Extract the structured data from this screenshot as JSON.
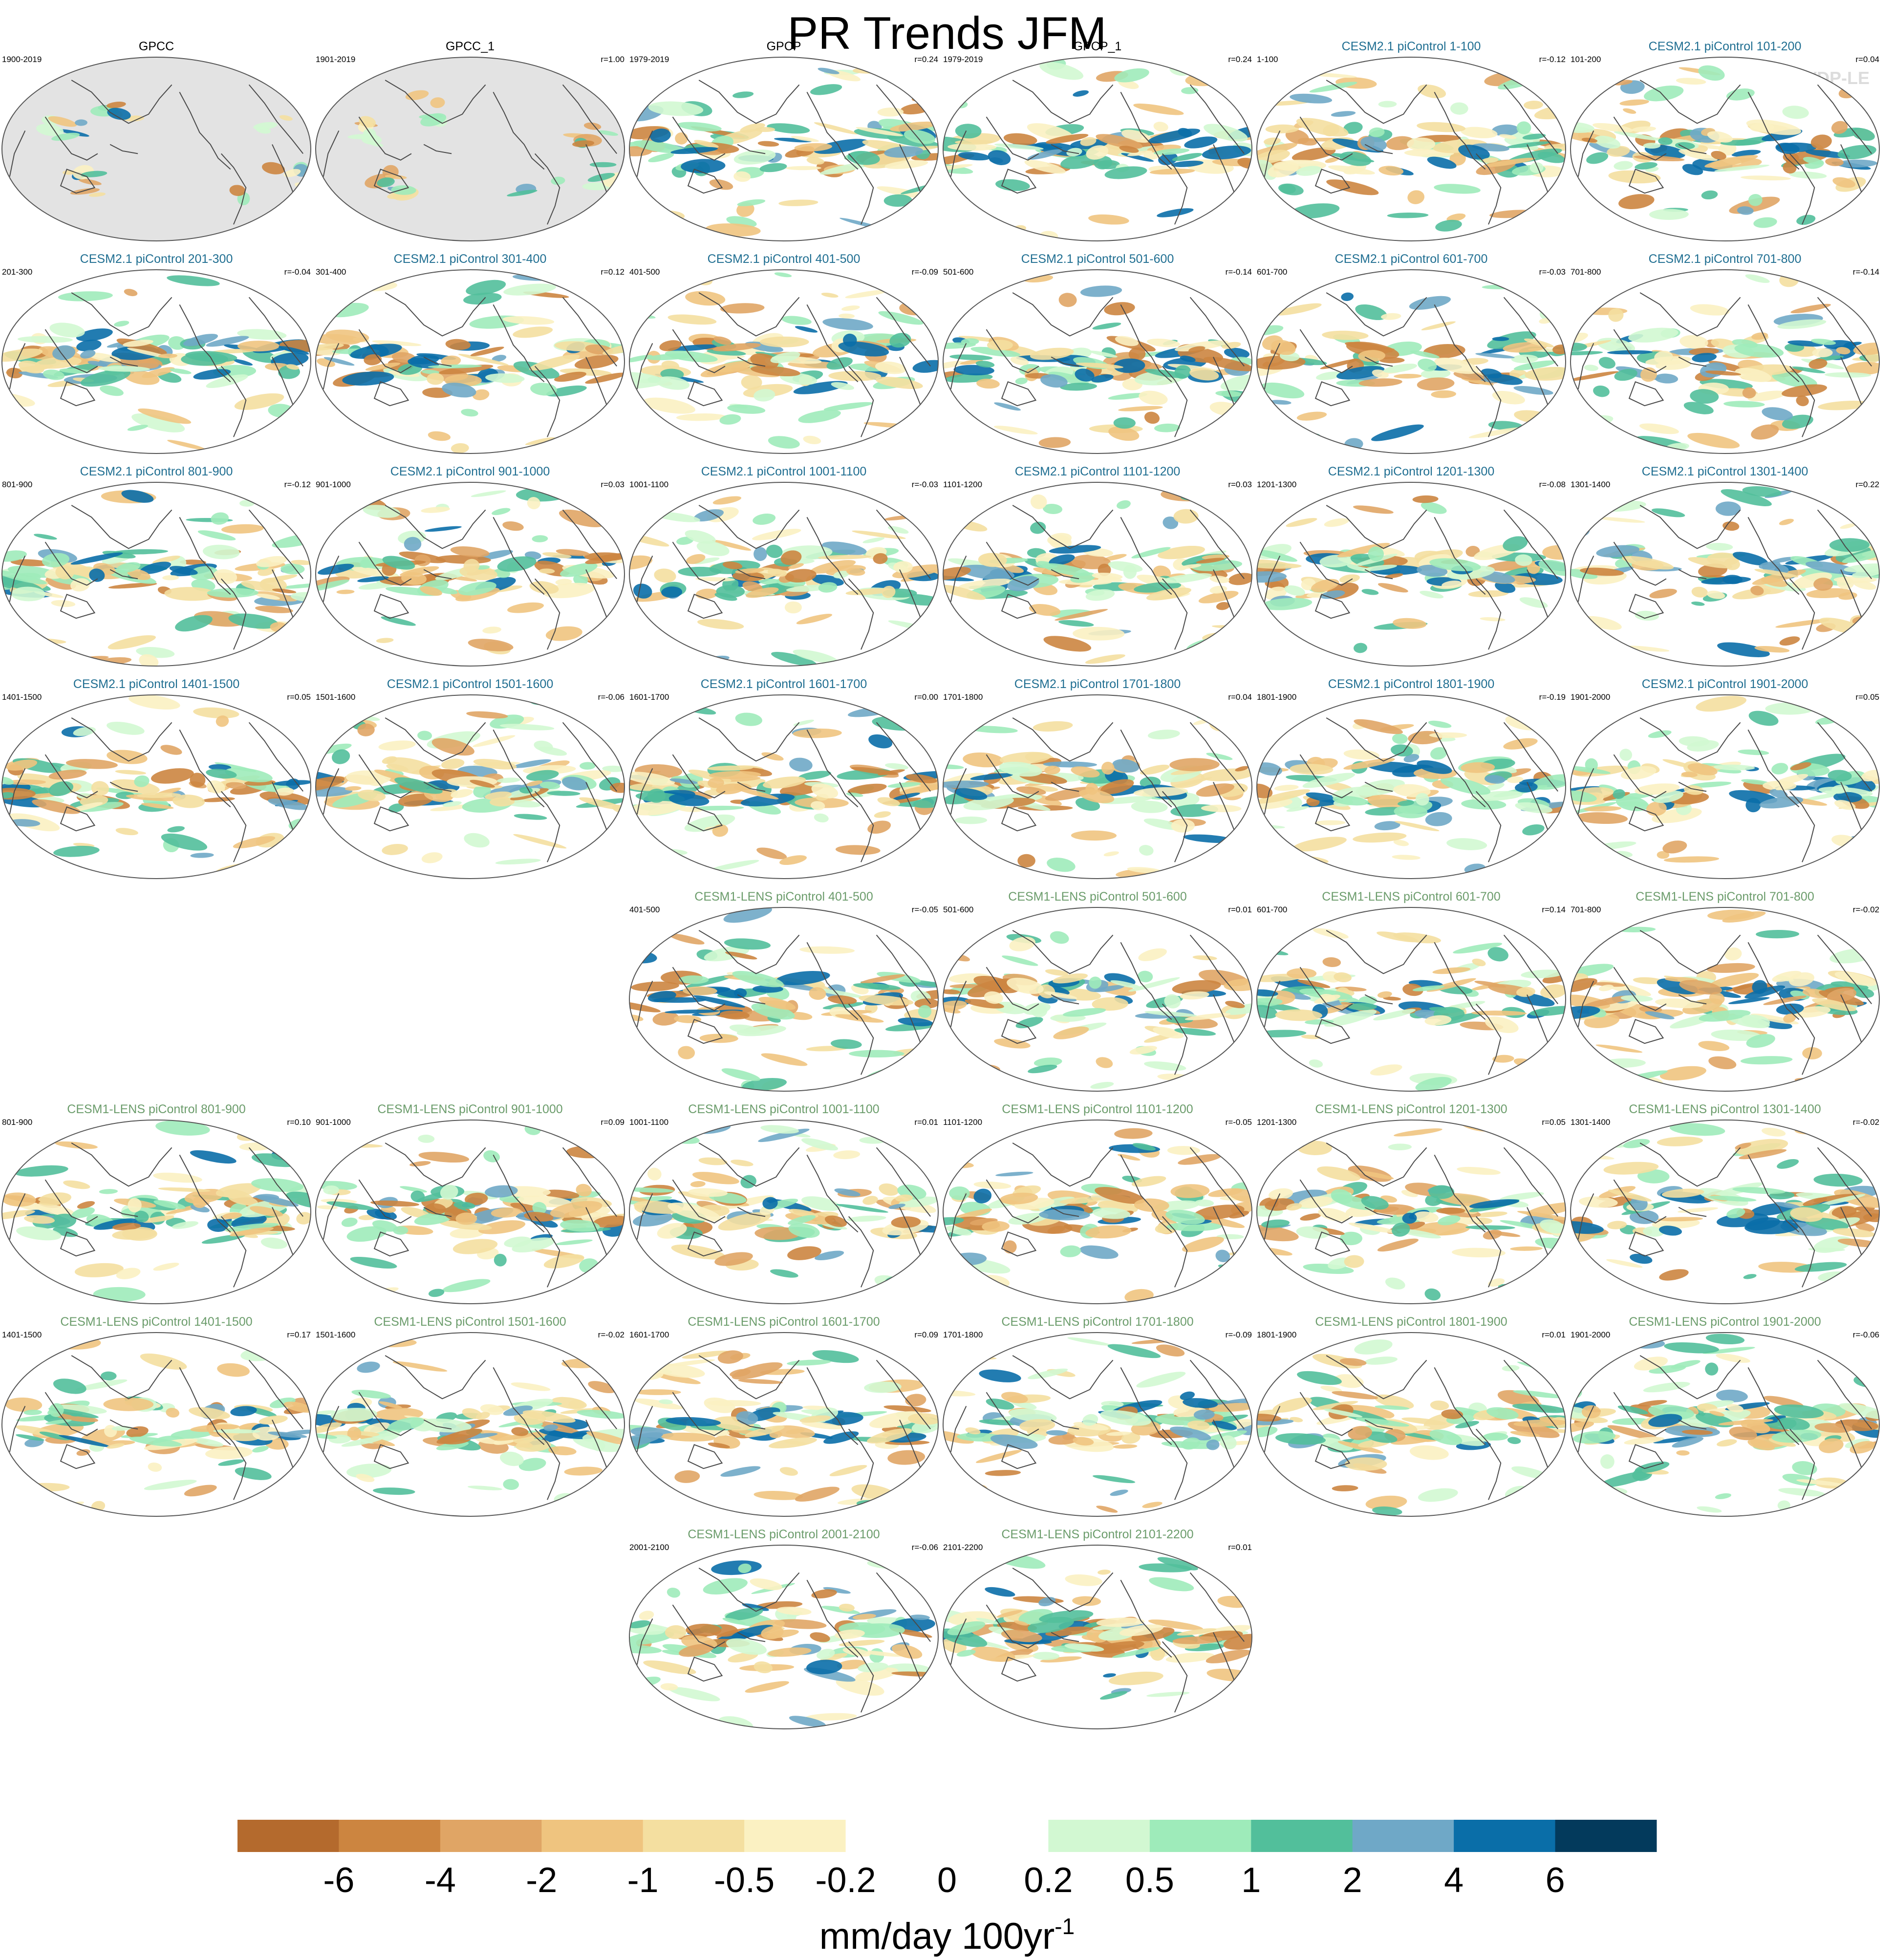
{
  "title": "PR Trends JFM",
  "watermark": "© CVDP-LE",
  "colors": {
    "obs_title": "#000000",
    "cesm2_title": "#1f6e91",
    "cesm1_title": "#6b9c6b",
    "land_mask": "#e3e3e3"
  },
  "colorbar": {
    "colors": [
      "#b46a2d",
      "#cc8540",
      "#e0a565",
      "#efc47f",
      "#f4dfa0",
      "#fbf1c2",
      "#ffffff",
      "#ffffff",
      "#d2f8d2",
      "#9eebba",
      "#52bf9b",
      "#6fa8c7",
      "#0a6ea8",
      "#033a5c"
    ],
    "labels": [
      "-6",
      "-4",
      "-2",
      "-1",
      "-0.5",
      "-0.2",
      "0",
      "0.2",
      "0.5",
      "1",
      "2",
      "4",
      "6"
    ],
    "units": "mm/day 100yr",
    "units_sup": "-1"
  },
  "chart_data": {
    "type": "heatmap",
    "variable": "PR",
    "season": "JFM",
    "panels": [
      {
        "title": "GPCC",
        "group": "obs",
        "period": "1900-2019",
        "r": "",
        "row": 0,
        "col": 0,
        "masked": true
      },
      {
        "title": "GPCC_1",
        "group": "obs",
        "period": "1901-2019",
        "r": "r=1.00",
        "row": 0,
        "col": 1,
        "masked": true
      },
      {
        "title": "GPCP",
        "group": "obs",
        "period": "1979-2019",
        "r": "r=0.24",
        "row": 0,
        "col": 2,
        "masked": false
      },
      {
        "title": "GPCP_1",
        "group": "obs",
        "period": "1979-2019",
        "r": "r=0.24",
        "row": 0,
        "col": 3,
        "masked": false
      },
      {
        "title": "CESM2.1 piControl 1-100",
        "group": "cesm2",
        "period": "1-100",
        "r": "r=-0.12",
        "row": 0,
        "col": 4
      },
      {
        "title": "CESM2.1 piControl 101-200",
        "group": "cesm2",
        "period": "101-200",
        "r": "r=0.04",
        "row": 0,
        "col": 5
      },
      {
        "title": "CESM2.1 piControl 201-300",
        "group": "cesm2",
        "period": "201-300",
        "r": "r=-0.04",
        "row": 1,
        "col": 0
      },
      {
        "title": "CESM2.1 piControl 301-400",
        "group": "cesm2",
        "period": "301-400",
        "r": "r=0.12",
        "row": 1,
        "col": 1
      },
      {
        "title": "CESM2.1 piControl 401-500",
        "group": "cesm2",
        "period": "401-500",
        "r": "r=-0.09",
        "row": 1,
        "col": 2
      },
      {
        "title": "CESM2.1 piControl 501-600",
        "group": "cesm2",
        "period": "501-600",
        "r": "r=-0.14",
        "row": 1,
        "col": 3
      },
      {
        "title": "CESM2.1 piControl 601-700",
        "group": "cesm2",
        "period": "601-700",
        "r": "r=-0.03",
        "row": 1,
        "col": 4
      },
      {
        "title": "CESM2.1 piControl 701-800",
        "group": "cesm2",
        "period": "701-800",
        "r": "r=-0.14",
        "row": 1,
        "col": 5
      },
      {
        "title": "CESM2.1 piControl 801-900",
        "group": "cesm2",
        "period": "801-900",
        "r": "r=-0.12",
        "row": 2,
        "col": 0
      },
      {
        "title": "CESM2.1 piControl 901-1000",
        "group": "cesm2",
        "period": "901-1000",
        "r": "r=0.03",
        "row": 2,
        "col": 1
      },
      {
        "title": "CESM2.1 piControl 1001-1100",
        "group": "cesm2",
        "period": "1001-1100",
        "r": "r=-0.03",
        "row": 2,
        "col": 2
      },
      {
        "title": "CESM2.1 piControl 1101-1200",
        "group": "cesm2",
        "period": "1101-1200",
        "r": "r=0.03",
        "row": 2,
        "col": 3
      },
      {
        "title": "CESM2.1 piControl 1201-1300",
        "group": "cesm2",
        "period": "1201-1300",
        "r": "r=-0.08",
        "row": 2,
        "col": 4
      },
      {
        "title": "CESM2.1 piControl 1301-1400",
        "group": "cesm2",
        "period": "1301-1400",
        "r": "r=0.22",
        "row": 2,
        "col": 5
      },
      {
        "title": "CESM2.1 piControl 1401-1500",
        "group": "cesm2",
        "period": "1401-1500",
        "r": "r=0.05",
        "row": 3,
        "col": 0
      },
      {
        "title": "CESM2.1 piControl 1501-1600",
        "group": "cesm2",
        "period": "1501-1600",
        "r": "r=-0.06",
        "row": 3,
        "col": 1
      },
      {
        "title": "CESM2.1 piControl 1601-1700",
        "group": "cesm2",
        "period": "1601-1700",
        "r": "r=0.00",
        "row": 3,
        "col": 2
      },
      {
        "title": "CESM2.1 piControl 1701-1800",
        "group": "cesm2",
        "period": "1701-1800",
        "r": "r=0.04",
        "row": 3,
        "col": 3
      },
      {
        "title": "CESM2.1 piControl 1801-1900",
        "group": "cesm2",
        "period": "1801-1900",
        "r": "r=-0.19",
        "row": 3,
        "col": 4
      },
      {
        "title": "CESM2.1 piControl 1901-2000",
        "group": "cesm2",
        "period": "1901-2000",
        "r": "r=0.05",
        "row": 3,
        "col": 5
      },
      {
        "title": "CESM1-LENS piControl 401-500",
        "group": "cesm1",
        "period": "401-500",
        "r": "r=-0.05",
        "row": 4,
        "col": 2
      },
      {
        "title": "CESM1-LENS piControl 501-600",
        "group": "cesm1",
        "period": "501-600",
        "r": "r=0.01",
        "row": 4,
        "col": 3
      },
      {
        "title": "CESM1-LENS piControl 601-700",
        "group": "cesm1",
        "period": "601-700",
        "r": "r=0.14",
        "row": 4,
        "col": 4
      },
      {
        "title": "CESM1-LENS piControl 701-800",
        "group": "cesm1",
        "period": "701-800",
        "r": "r=-0.02",
        "row": 4,
        "col": 5
      },
      {
        "title": "CESM1-LENS piControl 801-900",
        "group": "cesm1",
        "period": "801-900",
        "r": "r=0.10",
        "row": 5,
        "col": 0
      },
      {
        "title": "CESM1-LENS piControl 901-1000",
        "group": "cesm1",
        "period": "901-1000",
        "r": "r=0.09",
        "row": 5,
        "col": 1
      },
      {
        "title": "CESM1-LENS piControl 1001-1100",
        "group": "cesm1",
        "period": "1001-1100",
        "r": "r=0.01",
        "row": 5,
        "col": 2
      },
      {
        "title": "CESM1-LENS piControl 1101-1200",
        "group": "cesm1",
        "period": "1101-1200",
        "r": "r=-0.05",
        "row": 5,
        "col": 3
      },
      {
        "title": "CESM1-LENS piControl 1201-1300",
        "group": "cesm1",
        "period": "1201-1300",
        "r": "r=0.05",
        "row": 5,
        "col": 4
      },
      {
        "title": "CESM1-LENS piControl 1301-1400",
        "group": "cesm1",
        "period": "1301-1400",
        "r": "r=-0.02",
        "row": 5,
        "col": 5
      },
      {
        "title": "CESM1-LENS piControl 1401-1500",
        "group": "cesm1",
        "period": "1401-1500",
        "r": "r=0.17",
        "row": 6,
        "col": 0
      },
      {
        "title": "CESM1-LENS piControl 1501-1600",
        "group": "cesm1",
        "period": "1501-1600",
        "r": "r=-0.02",
        "row": 6,
        "col": 1
      },
      {
        "title": "CESM1-LENS piControl 1601-1700",
        "group": "cesm1",
        "period": "1601-1700",
        "r": "r=0.09",
        "row": 6,
        "col": 2
      },
      {
        "title": "CESM1-LENS piControl 1701-1800",
        "group": "cesm1",
        "period": "1701-1800",
        "r": "r=-0.09",
        "row": 6,
        "col": 3
      },
      {
        "title": "CESM1-LENS piControl 1801-1900",
        "group": "cesm1",
        "period": "1801-1900",
        "r": "r=0.01",
        "row": 6,
        "col": 4
      },
      {
        "title": "CESM1-LENS piControl 1901-2000",
        "group": "cesm1",
        "period": "1901-2000",
        "r": "r=-0.06",
        "row": 6,
        "col": 5
      },
      {
        "title": "CESM1-LENS piControl 2001-2100",
        "group": "cesm1",
        "period": "2001-2100",
        "r": "r=-0.06",
        "row": 7,
        "col": 2
      },
      {
        "title": "CESM1-LENS piControl 2101-2200",
        "group": "cesm1",
        "period": "2101-2200",
        "r": "r=0.01",
        "row": 7,
        "col": 3
      }
    ]
  }
}
